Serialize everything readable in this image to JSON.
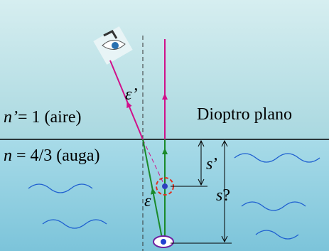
{
  "title": "Dioptro plano",
  "media": [
    {
      "symbol": "n’",
      "text": "= 1  (aire)"
    },
    {
      "symbol": "n",
      "text": " = 4/3 (auga)"
    }
  ],
  "angles": [
    {
      "symbol": "ε’"
    },
    {
      "symbol": "ε"
    }
  ],
  "distances": [
    {
      "symbol": "s",
      "mark": "’"
    },
    {
      "symbol": "s",
      "mark": "?"
    }
  ]
}
